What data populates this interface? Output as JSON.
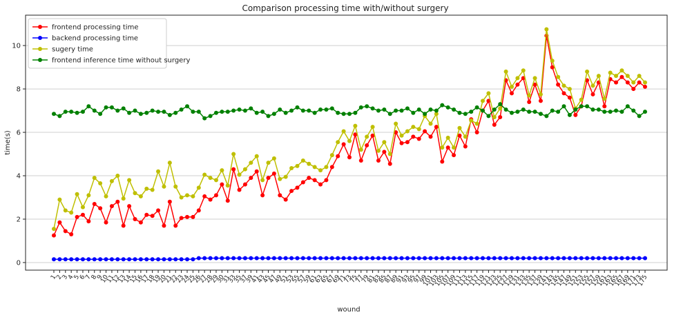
{
  "chart_data": {
    "type": "line",
    "title": "Comparison processing time with/without surgery",
    "xlabel": "wound",
    "ylabel": "time(s)",
    "categories": [
      "1",
      "2",
      "3",
      "4",
      "5",
      "6",
      "7",
      "8",
      "9",
      "10",
      "11",
      "12",
      "13",
      "14",
      "15",
      "16",
      "17",
      "18",
      "19",
      "20",
      "21",
      "22",
      "23",
      "24",
      "25",
      "26",
      "27",
      "28",
      "29",
      "30",
      "31",
      "33",
      "35",
      "37",
      "39",
      "41",
      "43",
      "45",
      "47",
      "49",
      "51",
      "53",
      "55",
      "57",
      "59",
      "61",
      "63",
      "65",
      "67",
      "69",
      "71",
      "73",
      "75",
      "77",
      "79",
      "81",
      "83",
      "85",
      "87",
      "89",
      "91",
      "93",
      "95",
      "97",
      "99",
      "101",
      "103",
      "105",
      "107",
      "109",
      "111",
      "113",
      "115",
      "117",
      "119",
      "121",
      "123",
      "125",
      "127",
      "129",
      "131",
      "133",
      "135",
      "137",
      "139",
      "141",
      "143",
      "145",
      "147",
      "149",
      "151",
      "153",
      "155",
      "157",
      "159",
      "161",
      "163",
      "165",
      "167",
      "169",
      "171",
      "173",
      "175"
    ],
    "series": [
      {
        "name": "frontend processing time",
        "color": "#ff0000",
        "values": [
          1.25,
          1.85,
          1.45,
          1.3,
          2.1,
          2.2,
          1.9,
          2.7,
          2.5,
          1.85,
          2.6,
          2.8,
          1.7,
          2.6,
          2.0,
          1.85,
          2.2,
          2.15,
          2.4,
          1.7,
          2.8,
          1.7,
          2.05,
          2.1,
          2.1,
          2.4,
          3.05,
          2.9,
          3.1,
          3.6,
          2.85,
          4.3,
          3.35,
          3.6,
          3.9,
          4.2,
          3.1,
          3.9,
          4.1,
          3.1,
          2.9,
          3.3,
          3.45,
          3.7,
          3.9,
          3.8,
          3.6,
          3.8,
          4.4,
          4.9,
          5.45,
          4.85,
          5.9,
          4.7,
          5.4,
          5.85,
          4.7,
          5.1,
          4.55,
          6.0,
          5.5,
          5.55,
          5.8,
          5.7,
          6.05,
          5.8,
          6.25,
          4.65,
          5.3,
          4.95,
          5.85,
          5.35,
          6.6,
          6.0,
          7.0,
          7.45,
          6.35,
          6.7,
          8.4,
          7.8,
          8.2,
          8.5,
          7.4,
          8.2,
          7.45,
          10.45,
          9.0,
          8.2,
          7.8,
          7.6,
          6.8,
          7.2,
          8.4,
          7.75,
          8.3,
          7.2,
          8.45,
          8.3,
          8.55,
          8.3,
          8.0,
          8.3,
          8.1
        ]
      },
      {
        "name": "backend processing time",
        "color": "#0000ff",
        "values": [
          0.15,
          0.15,
          0.15,
          0.15,
          0.15,
          0.15,
          0.15,
          0.15,
          0.15,
          0.15,
          0.15,
          0.15,
          0.15,
          0.15,
          0.15,
          0.15,
          0.15,
          0.15,
          0.15,
          0.15,
          0.15,
          0.15,
          0.15,
          0.15,
          0.15,
          0.2,
          0.2,
          0.2,
          0.2,
          0.2,
          0.2,
          0.2,
          0.2,
          0.2,
          0.2,
          0.2,
          0.2,
          0.2,
          0.2,
          0.2,
          0.2,
          0.2,
          0.2,
          0.2,
          0.2,
          0.2,
          0.2,
          0.2,
          0.2,
          0.2,
          0.2,
          0.2,
          0.2,
          0.2,
          0.2,
          0.2,
          0.2,
          0.2,
          0.2,
          0.2,
          0.2,
          0.2,
          0.2,
          0.2,
          0.2,
          0.2,
          0.2,
          0.2,
          0.2,
          0.2,
          0.2,
          0.2,
          0.2,
          0.2,
          0.2,
          0.2,
          0.2,
          0.2,
          0.2,
          0.2,
          0.2,
          0.2,
          0.2,
          0.2,
          0.2,
          0.2,
          0.2,
          0.2,
          0.2,
          0.2,
          0.2,
          0.2,
          0.2,
          0.2,
          0.2,
          0.2,
          0.2,
          0.2,
          0.2,
          0.2,
          0.2,
          0.2,
          0.2
        ]
      },
      {
        "name": "sugery time",
        "color": "#bfbf00",
        "values": [
          1.55,
          2.9,
          2.4,
          2.3,
          3.15,
          2.55,
          3.1,
          3.9,
          3.65,
          3.05,
          3.75,
          4.0,
          2.95,
          3.8,
          3.2,
          3.05,
          3.4,
          3.35,
          4.2,
          3.5,
          4.6,
          3.5,
          3.0,
          3.1,
          3.05,
          3.45,
          4.05,
          3.9,
          3.8,
          4.25,
          3.55,
          5.0,
          4.05,
          4.3,
          4.6,
          4.9,
          3.8,
          4.6,
          4.8,
          3.85,
          3.95,
          4.35,
          4.45,
          4.7,
          4.55,
          4.4,
          4.25,
          4.4,
          4.95,
          5.55,
          6.05,
          5.6,
          6.3,
          5.2,
          5.8,
          6.25,
          5.15,
          5.55,
          5.0,
          6.4,
          5.85,
          6.05,
          6.25,
          6.15,
          6.75,
          6.4,
          6.85,
          5.3,
          5.75,
          5.3,
          6.2,
          5.8,
          6.55,
          6.4,
          7.45,
          7.8,
          6.7,
          7.1,
          8.8,
          8.1,
          8.5,
          8.85,
          7.7,
          8.5,
          7.75,
          10.75,
          9.3,
          8.55,
          8.15,
          8.0,
          7.1,
          7.5,
          8.8,
          8.15,
          8.6,
          7.55,
          8.75,
          8.6,
          8.85,
          8.6,
          8.3,
          8.6,
          8.3
        ]
      },
      {
        "name": "frontend inference time without surgery",
        "color": "#008000",
        "values": [
          6.85,
          6.75,
          6.95,
          6.95,
          6.9,
          6.95,
          7.2,
          7.0,
          6.85,
          7.15,
          7.15,
          7.0,
          7.1,
          6.9,
          7.0,
          6.85,
          6.9,
          7.0,
          6.95,
          6.95,
          6.8,
          6.9,
          7.05,
          7.2,
          6.95,
          6.95,
          6.65,
          6.75,
          6.9,
          6.95,
          6.95,
          7.0,
          7.05,
          7.0,
          7.1,
          6.9,
          6.95,
          6.75,
          6.85,
          7.05,
          6.9,
          7.0,
          7.15,
          7.0,
          7.0,
          6.9,
          7.05,
          7.05,
          7.1,
          6.9,
          6.85,
          6.85,
          6.9,
          7.15,
          7.2,
          7.1,
          7.0,
          7.05,
          6.85,
          7.0,
          7.0,
          7.1,
          6.9,
          7.05,
          6.85,
          7.05,
          7.0,
          7.25,
          7.15,
          7.05,
          6.9,
          6.85,
          6.95,
          7.15,
          7.0,
          6.75,
          7.05,
          7.3,
          7.05,
          6.9,
          6.95,
          7.05,
          6.95,
          6.95,
          6.85,
          6.75,
          7.0,
          6.95,
          7.2,
          6.8,
          7.05,
          7.2,
          7.2,
          7.05,
          7.05,
          6.95,
          6.95,
          7.0,
          6.95,
          7.2,
          7.0,
          6.75,
          6.95
        ]
      }
    ],
    "ylim": [
      -0.35,
      11.4
    ],
    "yticks": [
      0,
      2,
      4,
      6,
      8,
      10
    ],
    "grid": true,
    "legend": "upper left"
  }
}
